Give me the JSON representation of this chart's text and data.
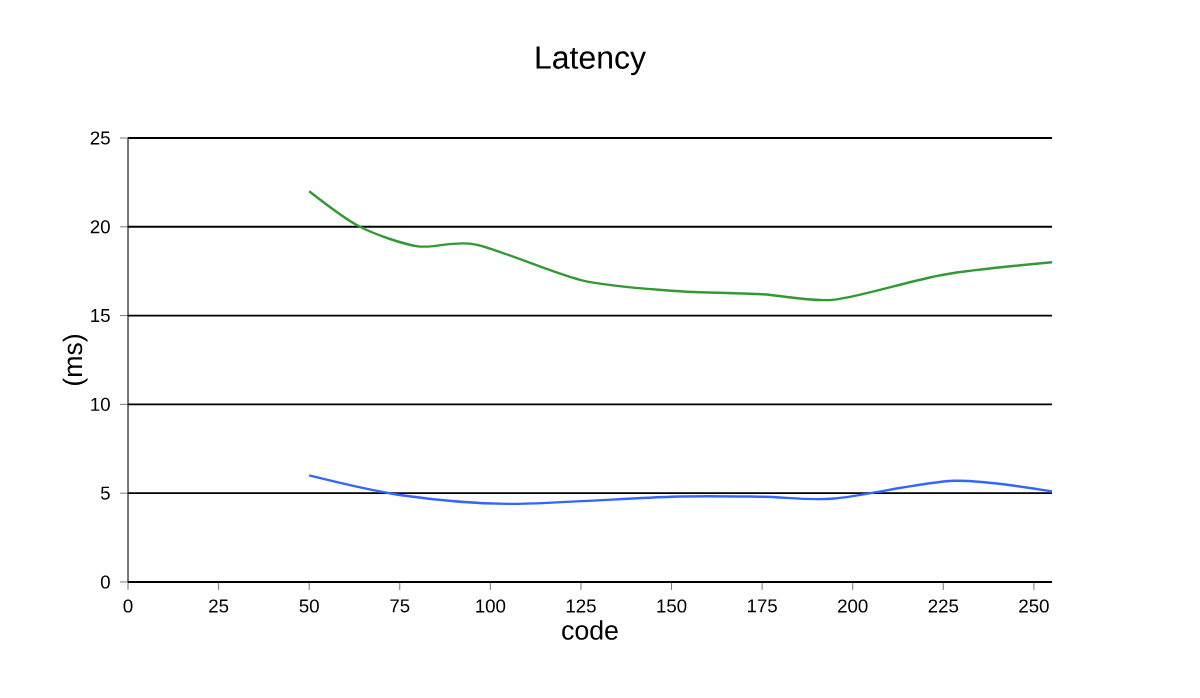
{
  "chart_data": {
    "type": "line",
    "title": "Latency",
    "xlabel": "code",
    "ylabel": "(ms)",
    "xlim": [
      0,
      255
    ],
    "xticks": [
      0,
      25,
      50,
      75,
      100,
      125,
      150,
      175,
      200,
      225,
      250
    ],
    "ylim": [
      0,
      25
    ],
    "yticks": [
      0,
      5,
      10,
      15,
      20,
      25
    ],
    "grid": "y",
    "series": [
      {
        "color": "#3366ff",
        "x": [
          50,
          75,
          105,
          150,
          175,
          195,
          228,
          255
        ],
        "values": [
          6,
          4.9,
          4.4,
          4.8,
          4.8,
          4.7,
          5.7,
          5.1
        ]
      },
      {
        "color": "#339933",
        "x": [
          50,
          64,
          80,
          96,
          125,
          150,
          175,
          195,
          225,
          255
        ],
        "values": [
          22,
          20,
          18.9,
          19,
          17,
          16.4,
          16.2,
          15.9,
          17.3,
          18
        ]
      }
    ]
  }
}
